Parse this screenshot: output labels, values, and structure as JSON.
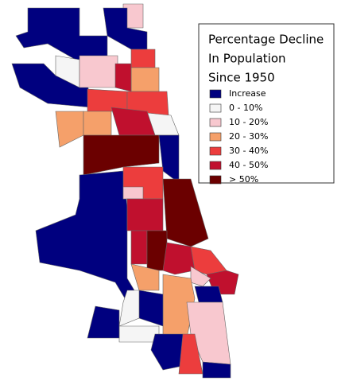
{
  "legend": {
    "title": [
      "Percentage Decline",
      "In Population",
      "Since 1950"
    ],
    "items": [
      {
        "label": "Increase",
        "color": "#00007f"
      },
      {
        "label": "0 - 10%",
        "color": "#f5f5f5"
      },
      {
        "label": "10 - 20%",
        "color": "#f8c8cf"
      },
      {
        "label": "20 - 30%",
        "color": "#f5a06a"
      },
      {
        "label": "30 - 40%",
        "color": "#ec3d3d"
      },
      {
        "label": "40 - 50%",
        "color": "#c0102e"
      },
      {
        "label": "> 50%",
        "color": "#6b0000"
      }
    ]
  }
}
